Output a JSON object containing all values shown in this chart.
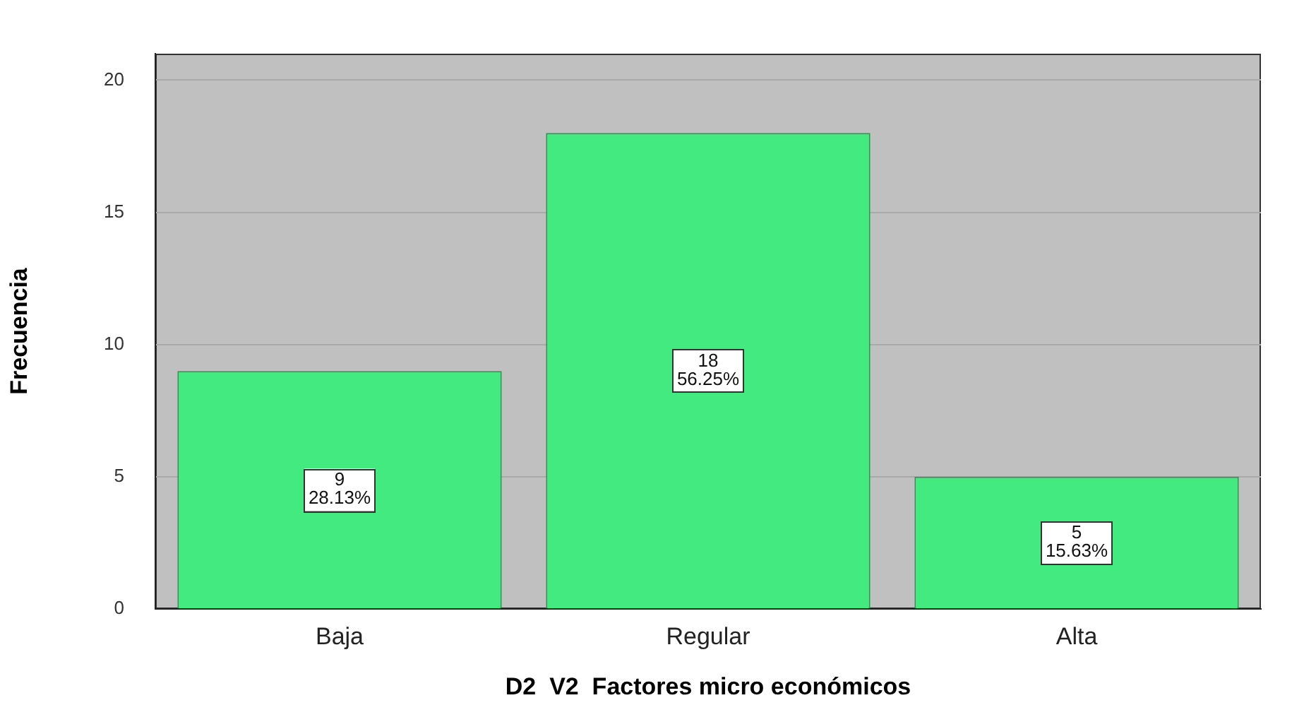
{
  "chart_data": {
    "type": "bar",
    "xlabel": "D2  V2  Factores micro económicos",
    "ylabel": "Frecuencia",
    "categories": [
      "Baja",
      "Regular",
      "Alta"
    ],
    "values": [
      9,
      18,
      5
    ],
    "color": "#42ea7f",
    "value_labels": [
      "9\n28.13%",
      "18\n56.25%",
      "5\n15.63%"
    ],
    "ylim": [
      0,
      21
    ],
    "yticks": [
      0,
      5,
      10,
      15,
      20
    ],
    "grid": "y"
  }
}
